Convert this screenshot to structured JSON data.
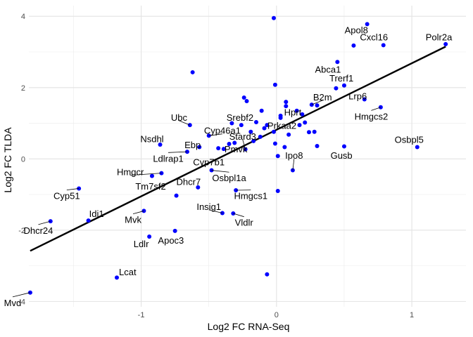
{
  "chart_data": {
    "type": "scatter",
    "xlabel": "Log2 FC RNA-Seq",
    "ylabel": "Log2 FC TLDA",
    "xlim": [
      -1.83,
      1.4
    ],
    "ylim": [
      -4.15,
      4.3
    ],
    "x_major_ticks": [
      -1,
      0,
      1
    ],
    "x_tick_labels": [
      "-1",
      "0",
      "1"
    ],
    "y_major_ticks": [
      -4,
      -2,
      0,
      2,
      4
    ],
    "y_tick_labels": [
      "-4",
      "-2",
      "0",
      "2",
      "4"
    ],
    "x_minor_ticks": [
      -1.5,
      -0.5,
      0.5
    ],
    "y_minor_ticks": [
      -3,
      -1,
      1,
      3
    ],
    "grid": true,
    "point_color": "#0000ff",
    "line_color": "#000000",
    "regression_line": {
      "x": [
        -1.82,
        1.25
      ],
      "y": [
        -2.58,
        3.15
      ]
    },
    "points": [
      {
        "x": -1.82,
        "y": -3.75
      },
      {
        "x": -1.67,
        "y": -1.75
      },
      {
        "x": -1.46,
        "y": -0.83
      },
      {
        "x": -1.39,
        "y": -1.73
      },
      {
        "x": -1.18,
        "y": -3.33
      },
      {
        "x": -0.98,
        "y": -1.46
      },
      {
        "x": -0.94,
        "y": -2.18
      },
      {
        "x": -0.92,
        "y": -0.48
      },
      {
        "x": -0.85,
        "y": -0.4
      },
      {
        "x": -0.86,
        "y": 0.4
      },
      {
        "x": -0.75,
        "y": -2.02
      },
      {
        "x": -0.74,
        "y": -1.03
      },
      {
        "x": -0.66,
        "y": 0.2
      },
      {
        "x": -0.64,
        "y": 0.95
      },
      {
        "x": -0.62,
        "y": 2.43
      },
      {
        "x": -0.58,
        "y": -0.8
      },
      {
        "x": -0.57,
        "y": 0.33
      },
      {
        "x": -0.5,
        "y": 0.65
      },
      {
        "x": -0.48,
        "y": -0.32
      },
      {
        "x": -0.43,
        "y": 0.3
      },
      {
        "x": -0.39,
        "y": 0.28
      },
      {
        "x": -0.4,
        "y": -1.52
      },
      {
        "x": -0.35,
        "y": 0.42
      },
      {
        "x": -0.33,
        "y": 1.0
      },
      {
        "x": -0.31,
        "y": 0.45
      },
      {
        "x": -0.32,
        "y": -1.53
      },
      {
        "x": -0.3,
        "y": -0.88
      },
      {
        "x": -0.26,
        "y": 0.95
      },
      {
        "x": -0.23,
        "y": 0.27
      },
      {
        "x": -0.24,
        "y": 1.72
      },
      {
        "x": -0.22,
        "y": 1.62
      },
      {
        "x": -0.19,
        "y": 0.76
      },
      {
        "x": -0.17,
        "y": 0.5
      },
      {
        "x": -0.15,
        "y": 1.03
      },
      {
        "x": -0.12,
        "y": 0.62
      },
      {
        "x": -0.11,
        "y": 1.35
      },
      {
        "x": -0.09,
        "y": 0.86
      },
      {
        "x": -0.07,
        "y": -3.24
      },
      {
        "x": -0.07,
        "y": 0.95
      },
      {
        "x": -0.02,
        "y": 3.95
      },
      {
        "x": -0.02,
        "y": 0.76
      },
      {
        "x": -0.01,
        "y": 2.08
      },
      {
        "x": -0.01,
        "y": 0.43
      },
      {
        "x": 0.01,
        "y": 0.08
      },
      {
        "x": 0.01,
        "y": -0.9
      },
      {
        "x": 0.03,
        "y": 1.15
      },
      {
        "x": 0.03,
        "y": 1.21
      },
      {
        "x": 0.06,
        "y": 0.33
      },
      {
        "x": 0.07,
        "y": 1.48
      },
      {
        "x": 0.07,
        "y": 1.6
      },
      {
        "x": 0.09,
        "y": 0.68
      },
      {
        "x": 0.12,
        "y": -0.32
      },
      {
        "x": 0.15,
        "y": 1.35
      },
      {
        "x": 0.17,
        "y": 0.95
      },
      {
        "x": 0.19,
        "y": 1.25
      },
      {
        "x": 0.21,
        "y": 1.02
      },
      {
        "x": 0.24,
        "y": 0.75
      },
      {
        "x": 0.26,
        "y": 1.52
      },
      {
        "x": 0.28,
        "y": 0.76
      },
      {
        "x": 0.3,
        "y": 0.36
      },
      {
        "x": 0.3,
        "y": 1.5
      },
      {
        "x": 0.44,
        "y": 1.98
      },
      {
        "x": 0.45,
        "y": 2.72
      },
      {
        "x": 0.5,
        "y": 0.35
      },
      {
        "x": 0.5,
        "y": 2.06
      },
      {
        "x": 0.57,
        "y": 3.18
      },
      {
        "x": 0.65,
        "y": 1.67
      },
      {
        "x": 0.67,
        "y": 3.78
      },
      {
        "x": 0.79,
        "y": 3.19
      },
      {
        "x": 0.77,
        "y": 1.45
      },
      {
        "x": 1.04,
        "y": 0.33
      },
      {
        "x": 1.25,
        "y": 3.22
      }
    ],
    "annotations": [
      {
        "text": "Mvd",
        "x": -1.95,
        "y": -4.05,
        "px": -1.82,
        "py": -3.75
      },
      {
        "text": "Dhcr24",
        "x": -1.76,
        "y": -2.02,
        "px": -1.67,
        "py": -1.75
      },
      {
        "text": "Cyp51",
        "x": -1.55,
        "y": -1.05,
        "px": -1.46,
        "py": -0.83
      },
      {
        "text": "Idi1",
        "x": -1.33,
        "y": -1.55,
        "px": -1.39,
        "py": -1.73
      },
      {
        "text": "Lcat",
        "x": -1.1,
        "y": -3.18,
        "px": -1.18,
        "py": -3.33
      },
      {
        "text": "Mvk",
        "x": -1.06,
        "y": -1.72,
        "px": -0.98,
        "py": -1.46
      },
      {
        "text": "Ldlr",
        "x": -1.0,
        "y": -2.4,
        "px": -0.94,
        "py": -2.18
      },
      {
        "text": "Apoc3",
        "x": -0.78,
        "y": -2.3,
        "px": -0.75,
        "py": -2.02
      },
      {
        "text": "Nsdhl",
        "x": -0.92,
        "y": 0.55,
        "px": -0.86,
        "py": 0.4
      },
      {
        "text": "Hmgcr",
        "x": -1.08,
        "y": -0.38,
        "px": -0.85,
        "py": -0.4
      },
      {
        "text": "Tm7sf2",
        "x": -0.93,
        "y": -0.78,
        "px": -0.92,
        "py": -0.48
      },
      {
        "text": "Ldlrap1",
        "x": -0.8,
        "y": 0.0,
        "px": -0.66,
        "py": 0.2
      },
      {
        "text": "Ubc",
        "x": -0.72,
        "y": 1.15,
        "px": -0.64,
        "py": 0.95
      },
      {
        "text": "Ebp",
        "x": -0.62,
        "y": 0.38,
        "px": -0.57,
        "py": 0.33
      },
      {
        "text": "Dhcr7",
        "x": -0.65,
        "y": -0.65,
        "px": -0.58,
        "py": -0.8
      },
      {
        "text": "Cyp46a1",
        "x": -0.4,
        "y": 0.78,
        "px": -0.5,
        "py": 0.65
      },
      {
        "text": "Cyp7b1",
        "x": -0.5,
        "y": -0.1,
        "px": -0.48,
        "py": -0.32
      },
      {
        "text": "Osbpl1a",
        "x": -0.35,
        "y": -0.55,
        "px": -0.48,
        "py": -0.32
      },
      {
        "text": "Insig1",
        "x": -0.5,
        "y": -1.35,
        "px": -0.4,
        "py": -1.52
      },
      {
        "text": "Vldlr",
        "x": -0.24,
        "y": -1.8,
        "px": -0.32,
        "py": -1.53
      },
      {
        "text": "Hmgcs1",
        "x": -0.19,
        "y": -1.05,
        "px": -0.3,
        "py": -0.88
      },
      {
        "text": "Srebf2",
        "x": -0.27,
        "y": 1.15,
        "px": -0.33,
        "py": 1.0
      },
      {
        "text": "Stard3",
        "x": -0.25,
        "y": 0.62,
        "px": -0.23,
        "py": 0.27
      },
      {
        "text": "Pmvk",
        "x": -0.3,
        "y": 0.26,
        "px": -0.35,
        "py": 0.42
      },
      {
        "text": "Hprt",
        "x": 0.12,
        "y": 1.3,
        "px": 0.15,
        "py": 1.35
      },
      {
        "text": "Prkaa2",
        "x": 0.04,
        "y": 0.92,
        "px": 0.09,
        "py": 0.68
      },
      {
        "text": "Ipo8",
        "x": 0.13,
        "y": 0.08,
        "px": 0.12,
        "py": -0.32
      },
      {
        "text": "B2m",
        "x": 0.34,
        "y": 1.72,
        "px": 0.26,
        "py": 1.52
      },
      {
        "text": "Abca1",
        "x": 0.38,
        "y": 2.5,
        "px": 0.45,
        "py": 2.72
      },
      {
        "text": "Trerf1",
        "x": 0.48,
        "y": 2.25,
        "px": 0.5,
        "py": 2.06
      },
      {
        "text": "Lrp6",
        "x": 0.6,
        "y": 1.75,
        "px": 0.65,
        "py": 1.67
      },
      {
        "text": "Hmgcs2",
        "x": 0.7,
        "y": 1.18,
        "px": 0.77,
        "py": 1.45
      },
      {
        "text": "Apol8",
        "x": 0.59,
        "y": 3.6,
        "px": 0.67,
        "py": 3.78
      },
      {
        "text": "Cxcl16",
        "x": 0.72,
        "y": 3.4,
        "px": 0.79,
        "py": 3.19
      },
      {
        "text": "Polr2a",
        "x": 1.2,
        "y": 3.4,
        "px": 1.25,
        "py": 3.22
      },
      {
        "text": "Gusb",
        "x": 0.48,
        "y": 0.08,
        "px": 0.5,
        "py": 0.35
      },
      {
        "text": "Osbpl5",
        "x": 0.98,
        "y": 0.53,
        "px": 1.04,
        "py": 0.33
      }
    ]
  }
}
